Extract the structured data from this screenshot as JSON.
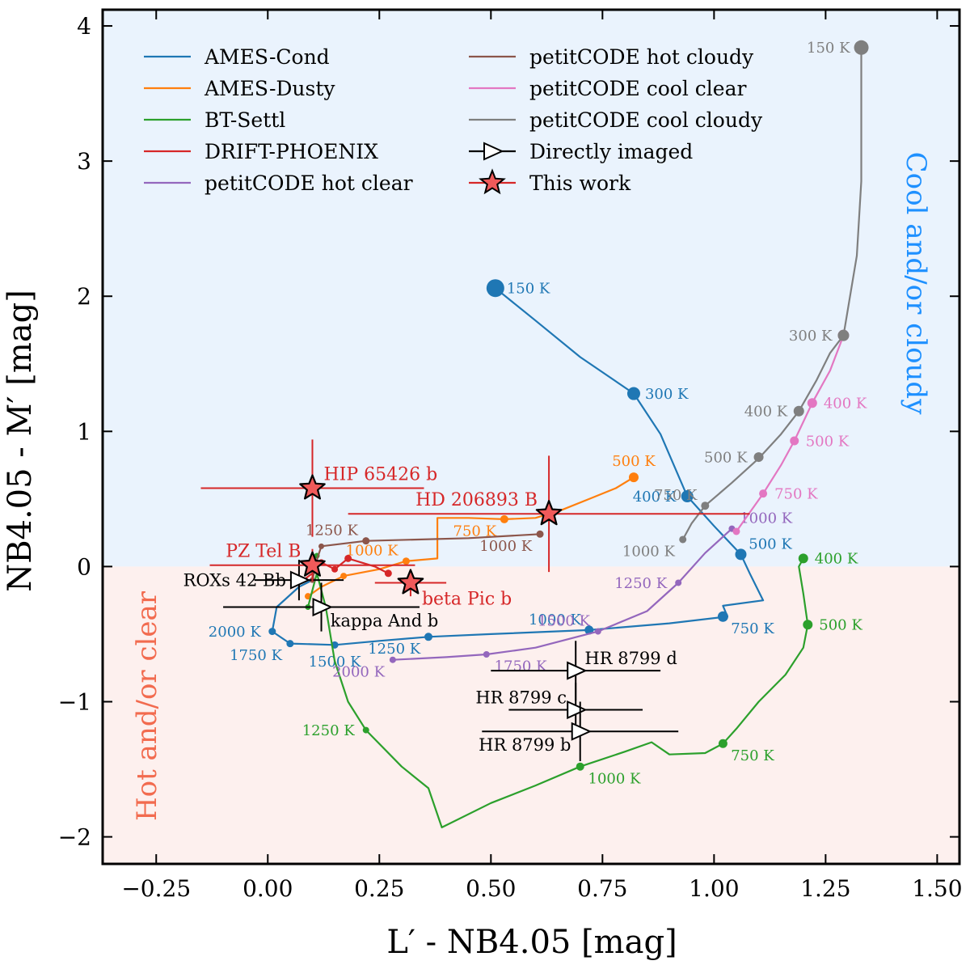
{
  "chart_data": {
    "type": "line",
    "xlabel": "L′ - NB4.05 [mag]",
    "ylabel": "NB4.05 - M′ [mag]",
    "xlim": [
      -0.37,
      1.55
    ],
    "ylim": [
      -2.2,
      4.12
    ],
    "xticks": [
      -0.25,
      0.0,
      0.25,
      0.5,
      0.75,
      1.0,
      1.25,
      1.5
    ],
    "xtick_labels": [
      "−0.25",
      "0.00",
      "0.25",
      "0.50",
      "0.75",
      "1.00",
      "1.25",
      "1.50"
    ],
    "yticks": [
      -2,
      -1,
      0,
      1,
      2,
      3,
      4
    ],
    "ytick_labels": [
      "−2",
      "−1",
      "0",
      "1",
      "2",
      "3",
      "4"
    ],
    "regions": [
      {
        "label": "Cool and/or cloudy",
        "y_from": 0,
        "y_to": 4.12,
        "fill": "#eaf3fd",
        "text_color": "#1e90ff"
      },
      {
        "label": "Hot and/or clear",
        "y_from": -2.2,
        "y_to": 0,
        "fill": "#fdf0ee",
        "text_color": "#f26b4f"
      }
    ],
    "legend": [
      {
        "label": "AMES-Cond",
        "color": "#1f77b4",
        "kind": "line"
      },
      {
        "label": "AMES-Dusty",
        "color": "#ff7f0e",
        "kind": "line"
      },
      {
        "label": "BT-Settl",
        "color": "#2ca02c",
        "kind": "line"
      },
      {
        "label": "DRIFT-PHOENIX",
        "color": "#d62728",
        "kind": "line"
      },
      {
        "label": "petitCODE hot clear",
        "color": "#9467bd",
        "kind": "line"
      },
      {
        "label": "petitCODE hot cloudy",
        "color": "#8c564b",
        "kind": "line"
      },
      {
        "label": "petitCODE cool clear",
        "color": "#e377c2",
        "kind": "line"
      },
      {
        "label": "petitCODE cool cloudy",
        "color": "#7f7f7f",
        "kind": "line"
      },
      {
        "label": "Directly imaged",
        "color": "#000000",
        "kind": "triangle"
      },
      {
        "label": "This work",
        "color": "#d62728",
        "kind": "star"
      }
    ],
    "series": [
      {
        "name": "AMES-Cond",
        "color": "#1f77b4",
        "line": [
          [
            0.51,
            2.06
          ],
          [
            0.6,
            1.82
          ],
          [
            0.7,
            1.55
          ],
          [
            0.82,
            1.28
          ],
          [
            0.88,
            0.98
          ],
          [
            0.94,
            0.52
          ],
          [
            1.0,
            0.3
          ],
          [
            1.06,
            0.09
          ],
          [
            1.08,
            -0.05
          ],
          [
            1.11,
            -0.25
          ],
          [
            1.02,
            -0.29
          ],
          [
            1.03,
            -0.37
          ],
          [
            0.9,
            -0.42
          ],
          [
            0.72,
            -0.47
          ],
          [
            0.5,
            -0.5
          ],
          [
            0.36,
            -0.52
          ],
          [
            0.25,
            -0.55
          ],
          [
            0.15,
            -0.58
          ],
          [
            0.05,
            -0.57
          ],
          [
            0.01,
            -0.48
          ],
          [
            0.02,
            -0.3
          ],
          [
            0.07,
            -0.15
          ],
          [
            0.1,
            -0.1
          ]
        ],
        "markers": [
          [
            0.51,
            2.06,
            20
          ],
          [
            0.82,
            1.28,
            14
          ],
          [
            0.94,
            0.52,
            13
          ],
          [
            1.06,
            0.09,
            12
          ],
          [
            1.02,
            -0.37,
            11
          ],
          [
            0.72,
            -0.47,
            9
          ],
          [
            0.36,
            -0.52,
            8
          ],
          [
            0.15,
            -0.58,
            7
          ],
          [
            0.05,
            -0.57,
            7
          ],
          [
            0.01,
            -0.48,
            7
          ]
        ],
        "labels": [
          {
            "text": "150 K",
            "x": 0.51,
            "y": 2.06,
            "pos": "right"
          },
          {
            "text": "300 K",
            "x": 0.82,
            "y": 1.28,
            "pos": "right"
          },
          {
            "text": "400 K",
            "x": 0.94,
            "y": 0.52,
            "pos": "left"
          },
          {
            "text": "500 K",
            "x": 1.06,
            "y": 0.09,
            "pos": "upright"
          },
          {
            "text": "750 K",
            "x": 1.02,
            "y": -0.37,
            "pos": "downright"
          },
          {
            "text": "1000 K",
            "x": 0.72,
            "y": -0.47,
            "pos": "upleft"
          },
          {
            "text": "1250 K",
            "x": 0.36,
            "y": -0.52,
            "pos": "downleft"
          },
          {
            "text": "1500 K",
            "x": 0.15,
            "y": -0.58,
            "pos": "down"
          },
          {
            "text": "1750 K",
            "x": 0.05,
            "y": -0.57,
            "pos": "downleft"
          },
          {
            "text": "2000 K",
            "x": 0.01,
            "y": -0.48,
            "pos": "left"
          }
        ]
      },
      {
        "name": "AMES-Dusty",
        "color": "#ff7f0e",
        "line": [
          [
            0.82,
            0.66
          ],
          [
            0.78,
            0.58
          ],
          [
            0.72,
            0.5
          ],
          [
            0.66,
            0.42
          ],
          [
            0.6,
            0.36
          ],
          [
            0.53,
            0.35
          ],
          [
            0.45,
            0.36
          ],
          [
            0.38,
            0.36
          ],
          [
            0.38,
            0.06
          ],
          [
            0.31,
            0.04
          ],
          [
            0.25,
            -0.02
          ],
          [
            0.17,
            -0.07
          ],
          [
            0.12,
            -0.15
          ],
          [
            0.09,
            -0.22
          ]
        ],
        "markers": [
          [
            0.82,
            0.66,
            10
          ],
          [
            0.53,
            0.35,
            8
          ],
          [
            0.31,
            0.04,
            7
          ],
          [
            0.17,
            -0.07,
            6
          ],
          [
            0.09,
            -0.22,
            6
          ]
        ],
        "labels": [
          {
            "text": "500 K",
            "x": 0.82,
            "y": 0.66,
            "pos": "up"
          },
          {
            "text": "750 K",
            "x": 0.53,
            "y": 0.35,
            "pos": "downleft"
          },
          {
            "text": "1000 K",
            "x": 0.31,
            "y": 0.04,
            "pos": "upleft"
          }
        ]
      },
      {
        "name": "BT-Settl",
        "color": "#2ca02c",
        "line": [
          [
            1.2,
            0.06
          ],
          [
            1.19,
            0.0
          ],
          [
            1.2,
            -0.2
          ],
          [
            1.21,
            -0.43
          ],
          [
            1.2,
            -0.6
          ],
          [
            1.16,
            -0.8
          ],
          [
            1.1,
            -1.0
          ],
          [
            1.05,
            -1.2
          ],
          [
            1.02,
            -1.31
          ],
          [
            0.98,
            -1.38
          ],
          [
            0.9,
            -1.39
          ],
          [
            0.86,
            -1.3
          ],
          [
            0.8,
            -1.37
          ],
          [
            0.7,
            -1.48
          ],
          [
            0.6,
            -1.62
          ],
          [
            0.5,
            -1.75
          ],
          [
            0.39,
            -1.93
          ],
          [
            0.36,
            -1.64
          ],
          [
            0.3,
            -1.48
          ],
          [
            0.22,
            -1.21
          ],
          [
            0.18,
            -1.0
          ],
          [
            0.15,
            -0.7
          ],
          [
            0.13,
            -0.3
          ],
          [
            0.11,
            -0.05
          ],
          [
            0.09,
            -0.3
          ]
        ],
        "markers": [
          [
            1.2,
            0.06,
            10
          ],
          [
            1.21,
            -0.43,
            10
          ],
          [
            1.02,
            -1.31,
            9
          ],
          [
            0.7,
            -1.48,
            8
          ],
          [
            0.22,
            -1.21,
            6
          ],
          [
            0.09,
            -0.3,
            5
          ],
          [
            0.11,
            0.08,
            5
          ]
        ],
        "labels": [
          {
            "text": "400 K",
            "x": 1.2,
            "y": 0.06,
            "pos": "right"
          },
          {
            "text": "500 K",
            "x": 1.21,
            "y": -0.43,
            "pos": "right"
          },
          {
            "text": "750 K",
            "x": 1.02,
            "y": -1.31,
            "pos": "downright"
          },
          {
            "text": "1000 K",
            "x": 0.7,
            "y": -1.48,
            "pos": "downright"
          },
          {
            "text": "1250 K",
            "x": 0.22,
            "y": -1.21,
            "pos": "left"
          }
        ]
      },
      {
        "name": "DRIFT-PHOENIX",
        "color": "#d62728",
        "line": [
          [
            0.27,
            -0.05
          ],
          [
            0.24,
            0.0
          ],
          [
            0.18,
            0.06
          ],
          [
            0.15,
            -0.02
          ],
          [
            0.12,
            0.03
          ],
          [
            0.1,
            -0.05
          ],
          [
            0.08,
            -0.1
          ]
        ],
        "markers": [
          [
            0.27,
            -0.05,
            7
          ],
          [
            0.18,
            0.06,
            7
          ],
          [
            0.15,
            -0.02,
            6
          ],
          [
            0.12,
            0.03,
            6
          ]
        ],
        "labels": []
      },
      {
        "name": "petitCODE hot clear",
        "color": "#9467bd",
        "line": [
          [
            0.28,
            -0.69
          ],
          [
            0.4,
            -0.67
          ],
          [
            0.49,
            -0.65
          ],
          [
            0.6,
            -0.6
          ],
          [
            0.74,
            -0.48
          ],
          [
            0.85,
            -0.33
          ],
          [
            0.92,
            -0.12
          ],
          [
            0.98,
            0.1
          ],
          [
            1.04,
            0.28
          ]
        ],
        "markers": [
          [
            0.28,
            -0.69,
            6
          ],
          [
            0.49,
            -0.65,
            6
          ],
          [
            0.74,
            -0.48,
            6
          ],
          [
            0.92,
            -0.12,
            6
          ],
          [
            1.04,
            0.28,
            6
          ]
        ],
        "labels": [
          {
            "text": "2000 K",
            "x": 0.28,
            "y": -0.69,
            "pos": "downleft"
          },
          {
            "text": "1750 K",
            "x": 0.49,
            "y": -0.65,
            "pos": "downright"
          },
          {
            "text": "1500 K",
            "x": 0.74,
            "y": -0.48,
            "pos": "upleft"
          },
          {
            "text": "1250 K",
            "x": 0.92,
            "y": -0.12,
            "pos": "left"
          },
          {
            "text": "1000 K",
            "x": 1.04,
            "y": 0.28,
            "pos": "upright"
          }
        ]
      },
      {
        "name": "petitCODE hot cloudy",
        "color": "#8c564b",
        "line": [
          [
            0.61,
            0.24
          ],
          [
            0.45,
            0.21
          ],
          [
            0.22,
            0.19
          ],
          [
            0.12,
            0.15
          ],
          [
            0.11,
            0.05
          ],
          [
            0.1,
            -0.1
          ]
        ],
        "markers": [
          [
            0.61,
            0.24,
            7
          ],
          [
            0.22,
            0.19,
            7
          ],
          [
            0.12,
            0.15,
            5
          ],
          [
            0.1,
            -0.1,
            5
          ]
        ],
        "labels": [
          {
            "text": "1250 K",
            "x": 0.22,
            "y": 0.19,
            "pos": "upleft"
          },
          {
            "text": "1000 K",
            "x": 0.61,
            "y": 0.24,
            "pos": "downleft"
          }
        ]
      },
      {
        "name": "petitCODE cool clear",
        "color": "#e377c2",
        "line": [
          [
            1.05,
            0.26
          ],
          [
            1.08,
            0.4
          ],
          [
            1.11,
            0.54
          ],
          [
            1.15,
            0.75
          ],
          [
            1.18,
            0.93
          ],
          [
            1.22,
            1.21
          ],
          [
            1.26,
            1.45
          ],
          [
            1.29,
            1.71
          ]
        ],
        "markers": [
          [
            1.05,
            0.26,
            7
          ],
          [
            1.11,
            0.54,
            8
          ],
          [
            1.18,
            0.93,
            9
          ],
          [
            1.22,
            1.21,
            10
          ],
          [
            1.29,
            1.71,
            12
          ]
        ],
        "labels": [
          {
            "text": "750 K",
            "x": 1.11,
            "y": 0.54,
            "pos": "right"
          },
          {
            "text": "500 K",
            "x": 1.18,
            "y": 0.93,
            "pos": "right"
          },
          {
            "text": "400 K",
            "x": 1.22,
            "y": 1.21,
            "pos": "right"
          }
        ]
      },
      {
        "name": "petitCODE cool cloudy",
        "color": "#7f7f7f",
        "line": [
          [
            0.93,
            0.2
          ],
          [
            0.95,
            0.32
          ],
          [
            0.98,
            0.45
          ],
          [
            1.04,
            0.62
          ],
          [
            1.1,
            0.8
          ],
          [
            1.15,
            0.98
          ],
          [
            1.19,
            1.15
          ],
          [
            1.23,
            1.38
          ],
          [
            1.26,
            1.58
          ],
          [
            1.29,
            1.71
          ],
          [
            1.32,
            2.3
          ],
          [
            1.33,
            2.85
          ],
          [
            1.33,
            3.84
          ]
        ],
        "markers": [
          [
            0.93,
            0.2,
            7
          ],
          [
            0.98,
            0.45,
            8
          ],
          [
            1.1,
            0.81,
            10
          ],
          [
            1.19,
            1.15,
            11
          ],
          [
            1.29,
            1.71,
            12
          ],
          [
            1.33,
            3.84,
            16
          ]
        ],
        "labels": [
          {
            "text": "1000 K",
            "x": 0.93,
            "y": 0.2,
            "pos": "downleft"
          },
          {
            "text": "750 K",
            "x": 0.98,
            "y": 0.45,
            "pos": "upleft"
          },
          {
            "text": "500 K",
            "x": 1.1,
            "y": 0.81,
            "pos": "left"
          },
          {
            "text": "400 K",
            "x": 1.19,
            "y": 1.15,
            "pos": "left"
          },
          {
            "text": "300 K",
            "x": 1.29,
            "y": 1.71,
            "pos": "left"
          },
          {
            "text": "150 K",
            "x": 1.33,
            "y": 3.84,
            "pos": "left"
          }
        ]
      }
    ],
    "directly_imaged": [
      {
        "name": "ROXs 42 Bb",
        "x": 0.07,
        "y": -0.1,
        "xerr": 0.1,
        "yerr": 0.15,
        "label_pos": "left"
      },
      {
        "name": "kappa And b",
        "x": 0.12,
        "y": -0.3,
        "xerr": 0.22,
        "yerr": 0.18,
        "label_pos": "downright"
      },
      {
        "name": "HR 8799 d",
        "x": 0.69,
        "y": -0.77,
        "xerr": 0.19,
        "yerr": 0.22,
        "label_pos": "upright"
      },
      {
        "name": "HR 8799 c",
        "x": 0.69,
        "y": -1.06,
        "xerr": 0.15,
        "yerr": 0.2,
        "label_pos": "upleft"
      },
      {
        "name": "HR 8799 b",
        "x": 0.7,
        "y": -1.22,
        "xerr": 0.22,
        "yerr": 0.22,
        "label_pos": "downleft"
      }
    ],
    "this_work": [
      {
        "name": "HIP 65426 b",
        "x": 0.1,
        "y": 0.58,
        "xerr": 0.25,
        "yerr": 0.36,
        "label_pos": "upright"
      },
      {
        "name": "HD 206893 B",
        "x": 0.63,
        "y": 0.39,
        "xerr": 0.45,
        "yerr": 0.43,
        "label_pos": "upleft"
      },
      {
        "name": "PZ Tel B",
        "x": 0.1,
        "y": 0.01,
        "xerr": 0.23,
        "yerr": 0.12,
        "label_pos": "upleft"
      },
      {
        "name": "beta Pic b",
        "x": 0.32,
        "y": -0.12,
        "xerr": 0.08,
        "yerr": 0.1,
        "label_pos": "downright"
      }
    ]
  }
}
